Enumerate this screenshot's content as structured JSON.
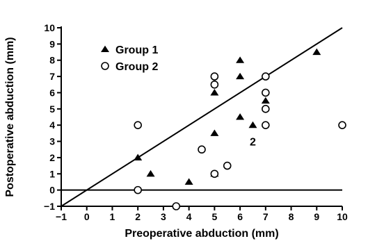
{
  "chart_data": {
    "type": "scatter",
    "title": "",
    "xlabel": "Preoperative abduction (mm)",
    "ylabel": "Postoperative abduction (mm)",
    "xlim": [
      -1,
      10
    ],
    "ylim": [
      -1,
      10
    ],
    "xticks": [
      "−1",
      "0",
      "1",
      "2",
      "3",
      "4",
      "5",
      "6",
      "7",
      "8",
      "9",
      "10"
    ],
    "yticks": [
      "−1",
      "0",
      "1",
      "2",
      "3",
      "4",
      "5",
      "6",
      "7",
      "8",
      "9",
      "10"
    ],
    "grid": false,
    "legend_position": "top-left",
    "series": [
      {
        "name": "Group 1",
        "marker": "filled-triangle",
        "points": [
          {
            "x": 2,
            "y": 2
          },
          {
            "x": 2.5,
            "y": 1
          },
          {
            "x": 4,
            "y": 0.5
          },
          {
            "x": 5,
            "y": 1
          },
          {
            "x": 5,
            "y": 3.5
          },
          {
            "x": 5,
            "y": 6
          },
          {
            "x": 6,
            "y": 4.5
          },
          {
            "x": 6,
            "y": 7
          },
          {
            "x": 6,
            "y": 8
          },
          {
            "x": 6.5,
            "y": 4
          },
          {
            "x": 7,
            "y": 5.5
          },
          {
            "x": 9,
            "y": 8.5
          }
        ]
      },
      {
        "name": "Group 2",
        "marker": "open-circle",
        "points": [
          {
            "x": 2,
            "y": 4
          },
          {
            "x": 2,
            "y": 0
          },
          {
            "x": 3.5,
            "y": -1
          },
          {
            "x": 4.5,
            "y": 2.5
          },
          {
            "x": 5,
            "y": 1
          },
          {
            "x": 5,
            "y": 6.5
          },
          {
            "x": 5,
            "y": 7
          },
          {
            "x": 5.5,
            "y": 1.5
          },
          {
            "x": 7,
            "y": 4
          },
          {
            "x": 7,
            "y": 5
          },
          {
            "x": 7,
            "y": 6
          },
          {
            "x": 7,
            "y": 7
          },
          {
            "x": 10,
            "y": 4
          }
        ]
      }
    ],
    "reference_lines": [
      {
        "type": "identity",
        "from": [
          -1,
          -1
        ],
        "to": [
          10,
          10
        ]
      },
      {
        "type": "horizontal",
        "y": 0,
        "from_x": -1,
        "to_x": 10
      }
    ],
    "annotations": [
      {
        "text": "2",
        "x": 6.5,
        "y": 3
      }
    ]
  }
}
